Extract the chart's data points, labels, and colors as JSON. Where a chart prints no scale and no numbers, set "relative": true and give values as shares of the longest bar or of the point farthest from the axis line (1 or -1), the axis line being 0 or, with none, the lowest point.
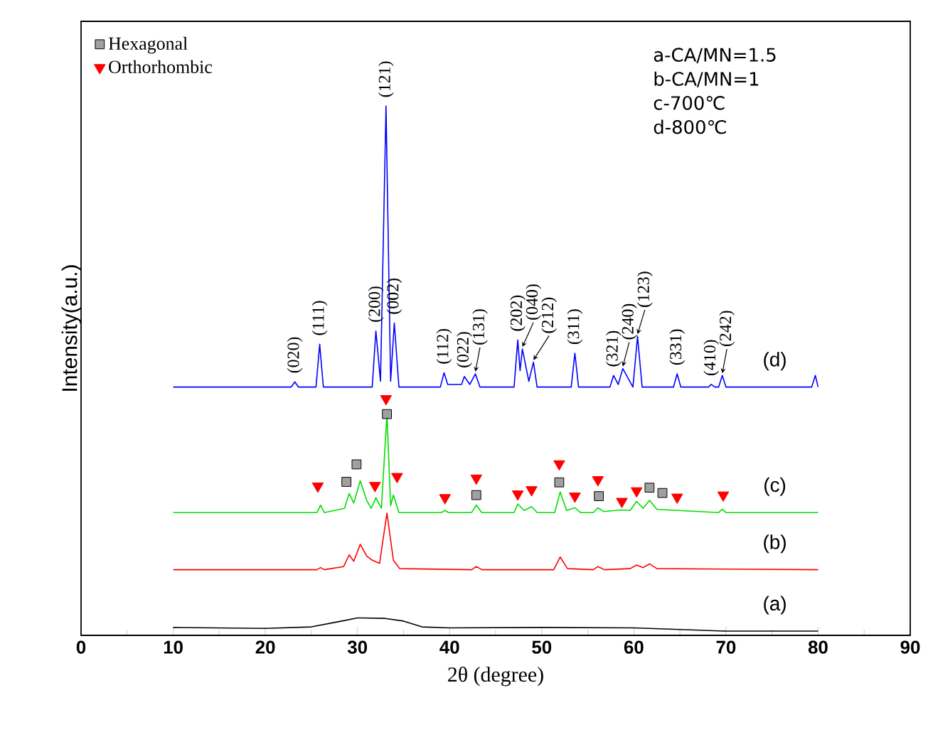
{
  "chart_data": {
    "type": "line",
    "relative": true,
    "xlabel": "2θ  (degree)",
    "ylabel": "Intensity(a.u.)",
    "xlim": [
      0,
      90
    ],
    "xticks": [
      0,
      10,
      20,
      30,
      40,
      50,
      60,
      70,
      80,
      90
    ],
    "tick_labels": "x",
    "legend": "top left",
    "marker": "none",
    "grid": false,
    "series": [
      {
        "color": "#000000",
        "x": [
          10,
          20,
          25,
          28,
          30,
          33,
          35,
          37,
          40,
          50,
          60,
          65,
          70,
          80
        ],
        "values": [
          0.015,
          0.013,
          0.016,
          0.026,
          0.033,
          0.032,
          0.027,
          0.016,
          0.014,
          0.015,
          0.014,
          0.011,
          0.008,
          0.008
        ]
      },
      {
        "color": "#ff0000",
        "x": [
          10,
          25.6,
          26.0,
          26.4,
          28.5,
          29.1,
          29.6,
          30.3,
          31.0,
          31.5,
          32.4,
          33.2,
          33.9,
          34.6,
          42.4,
          42.9,
          43.5,
          51.3,
          52.0,
          52.8,
          55.6,
          56.1,
          56.8,
          59.6,
          60.3,
          61.0,
          61.7,
          62.5,
          80
        ],
        "values": [
          0.124,
          0.124,
          0.128,
          0.124,
          0.13,
          0.152,
          0.14,
          0.172,
          0.15,
          0.143,
          0.136,
          0.231,
          0.142,
          0.126,
          0.124,
          0.13,
          0.124,
          0.124,
          0.148,
          0.126,
          0.124,
          0.13,
          0.124,
          0.126,
          0.133,
          0.128,
          0.135,
          0.126,
          0.124
        ]
      },
      {
        "color": "#00dd00",
        "x": [
          10,
          25.6,
          26.0,
          26.4,
          28.6,
          29.1,
          29.6,
          30.3,
          31.0,
          31.5,
          32.0,
          32.6,
          33.2,
          33.6,
          33.9,
          34.5,
          39.1,
          39.5,
          39.9,
          42.4,
          42.9,
          43.5,
          47.0,
          47.4,
          48.1,
          48.9,
          49.5,
          51.4,
          52.0,
          52.7,
          53.6,
          54.2,
          55.6,
          56.1,
          56.7,
          58.7,
          59.6,
          60.3,
          61.0,
          61.7,
          62.5,
          64.8,
          69.2,
          69.6,
          70.0,
          80
        ],
        "values": [
          0.232,
          0.232,
          0.246,
          0.232,
          0.24,
          0.268,
          0.25,
          0.292,
          0.255,
          0.24,
          0.26,
          0.24,
          0.418,
          0.245,
          0.265,
          0.232,
          0.232,
          0.236,
          0.232,
          0.232,
          0.246,
          0.232,
          0.232,
          0.248,
          0.236,
          0.243,
          0.232,
          0.232,
          0.271,
          0.236,
          0.241,
          0.232,
          0.232,
          0.241,
          0.234,
          0.237,
          0.236,
          0.253,
          0.24,
          0.255,
          0.238,
          0.236,
          0.232,
          0.238,
          0.232,
          0.232
        ]
      },
      {
        "color": "#0000ff",
        "x": [
          10,
          22.8,
          23.2,
          23.6,
          25.5,
          25.9,
          26.3,
          31.6,
          32.0,
          32.5,
          33.1,
          33.6,
          34.0,
          34.5,
          39.0,
          39.4,
          39.8,
          41.3,
          41.6,
          42.2,
          42.8,
          43.3,
          47.0,
          47.4,
          47.65,
          47.9,
          48.6,
          49.1,
          49.5,
          53.2,
          53.6,
          54.0,
          57.4,
          57.8,
          58.3,
          58.8,
          59.9,
          60.4,
          60.9,
          64.3,
          64.7,
          65.1,
          68.1,
          68.4,
          68.8,
          69.2,
          69.6,
          70.0,
          79.3,
          79.7,
          80
        ],
        "values": [
          0.469,
          0.469,
          0.479,
          0.469,
          0.469,
          0.55,
          0.469,
          0.469,
          0.575,
          0.48,
          1,
          0.48,
          0.59,
          0.469,
          0.469,
          0.496,
          0.474,
          0.474,
          0.489,
          0.474,
          0.494,
          0.469,
          0.469,
          0.558,
          0.5,
          0.541,
          0.48,
          0.516,
          0.469,
          0.469,
          0.533,
          0.469,
          0.469,
          0.491,
          0.474,
          0.504,
          0.469,
          0.565,
          0.469,
          0.469,
          0.494,
          0.469,
          0.469,
          0.474,
          0.469,
          0.469,
          0.491,
          0.469,
          0.469,
          0.491,
          0.469
        ]
      },
      {
        "name": "Hexagonal",
        "type": "scatter",
        "marker": "square",
        "color": "#a0a0a0",
        "x": [
          28.8,
          29.9,
          33.2,
          42.9,
          51.9,
          56.2,
          61.7,
          63.1
        ],
        "values": [
          0.29,
          0.323,
          0.418,
          0.265,
          0.289,
          0.263,
          0.279,
          0.269
        ]
      },
      {
        "name": "Orthorhombic",
        "type": "scatter",
        "marker": "triangle",
        "color": "#ff0000",
        "x": [
          25.7,
          31.9,
          33.1,
          34.3,
          39.5,
          42.9,
          47.4,
          48.9,
          51.9,
          53.6,
          56.1,
          58.7,
          60.3,
          64.7,
          69.7
        ],
        "values": [
          0.282,
          0.283,
          0.447,
          0.3,
          0.26,
          0.297,
          0.267,
          0.275,
          0.324,
          0.263,
          0.294,
          0.253,
          0.273,
          0.261,
          0.265
        ]
      }
    ],
    "annotations": [
      "(a)",
      "(b)",
      "(c)",
      "(d)",
      "a-CA/MN=1.5",
      "b-CA/MN=1",
      "c-700℃",
      "d-800℃",
      {
        "text": "(020)",
        "x": 23.2,
        "y": 0.479
      },
      {
        "text": "(111)",
        "x": 25.9,
        "y": 0.55
      },
      {
        "text": "(200)",
        "x": 32.0,
        "y": 0.575
      },
      {
        "text": "(121)",
        "x": 33.1,
        "y": 1
      },
      {
        "text": "(002)",
        "x": 34.0,
        "y": 0.59
      },
      {
        "text": "(112)",
        "x": 39.4,
        "y": 0.496
      },
      {
        "text": "(022)",
        "x": 41.6,
        "y": 0.489
      },
      {
        "text": "(131)",
        "x": 42.8,
        "y": 0.494
      },
      {
        "text": "(202)",
        "x": 47.4,
        "y": 0.558
      },
      {
        "text": "(040)",
        "x": 47.9,
        "y": 0.541
      },
      {
        "text": "(212)",
        "x": 49.1,
        "y": 0.516
      },
      {
        "text": "(311)",
        "x": 53.6,
        "y": 0.533
      },
      {
        "text": "(321)",
        "x": 57.8,
        "y": 0.491
      },
      {
        "text": "(240)",
        "x": 58.8,
        "y": 0.504
      },
      {
        "text": "(123)",
        "x": 60.4,
        "y": 0.565
      },
      {
        "text": "(331)",
        "x": 64.7,
        "y": 0.494
      },
      {
        "text": "(410)",
        "x": 68.4,
        "y": 0.474
      },
      {
        "text": "(242)",
        "x": 69.6,
        "y": 0.491
      }
    ]
  }
}
